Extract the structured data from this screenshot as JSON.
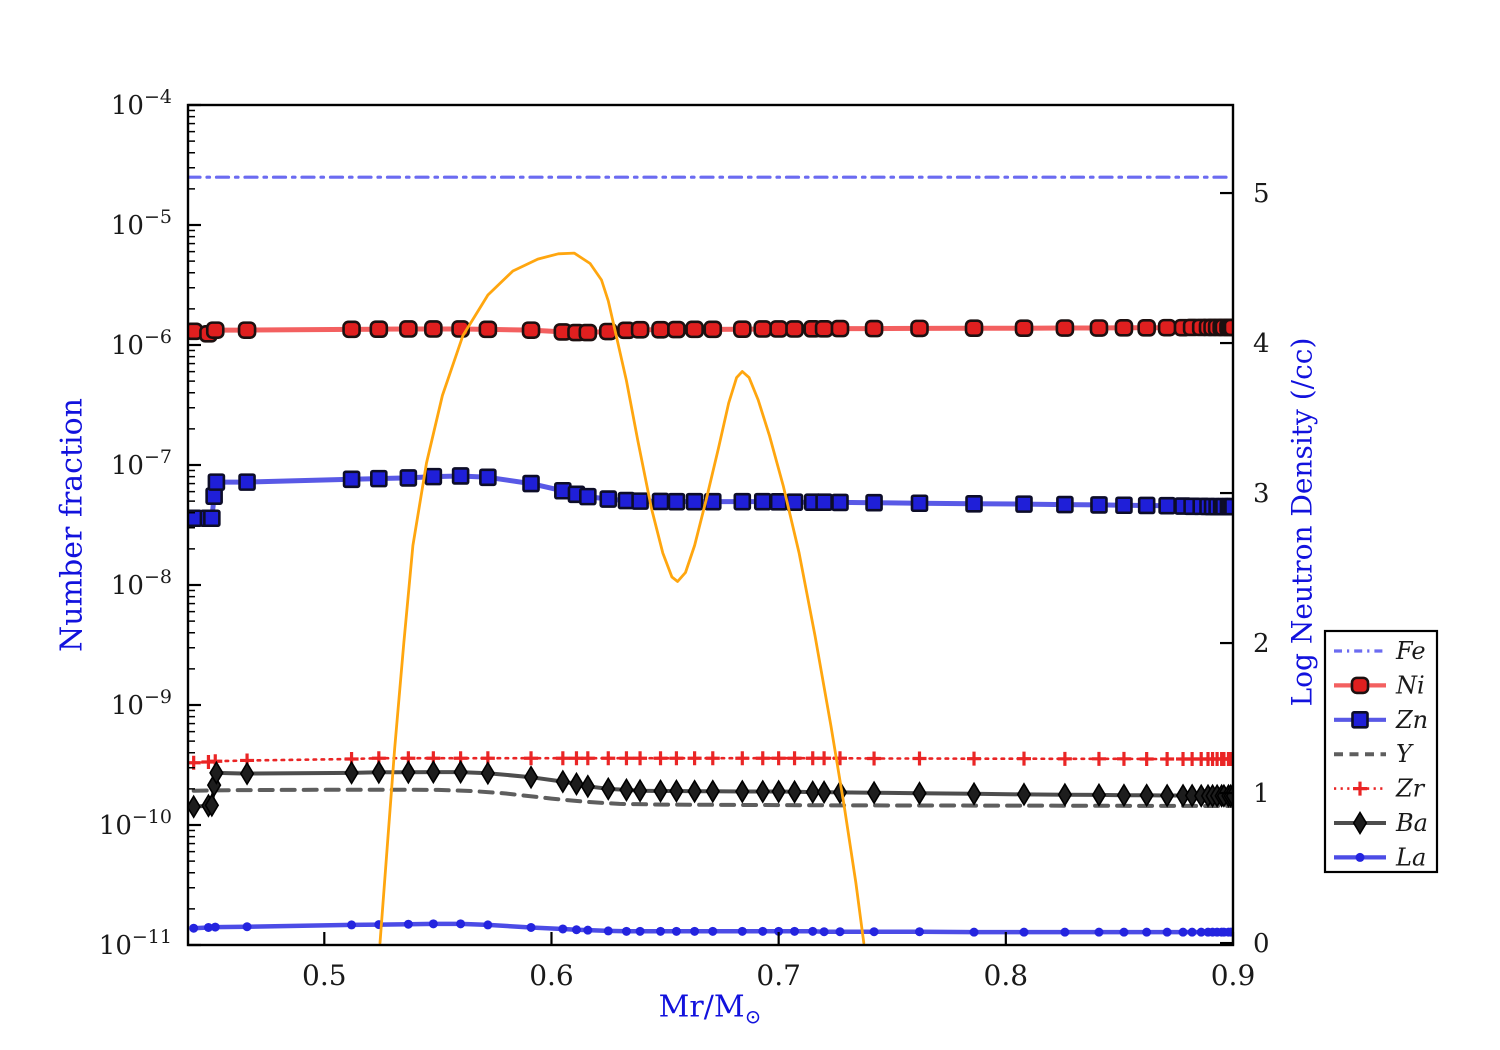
{
  "figure": {
    "background": "#ffffff"
  },
  "chart_data": {
    "type": "line",
    "title": "",
    "x_axis": {
      "label": "Mr/M⊙",
      "label_main": "Mr/M",
      "label_sub": "⊙",
      "min": 0.44,
      "max": 0.9,
      "ticks": [
        0.5,
        0.6,
        0.7,
        0.8,
        0.9
      ],
      "tick_labels": [
        "0.5",
        "0.6",
        "0.7",
        "0.8",
        "0.9"
      ]
    },
    "y_left_axis": {
      "label": "Number fraction",
      "scale": "log",
      "min": 1e-11,
      "max": 0.0001,
      "tick_exponents": [
        -4,
        -5,
        -6,
        -7,
        -8,
        -9,
        -10,
        -11
      ],
      "tick_base": "10"
    },
    "y_right_axis": {
      "label": "Log Neutron Density (/cc)",
      "scale": "linear",
      "min": -0.013,
      "max": 5.587,
      "ticks": [
        0,
        1,
        2,
        3,
        4,
        5
      ],
      "tick_labels": [
        "0",
        "1",
        "2",
        "3",
        "4",
        "5"
      ]
    },
    "legend": {
      "entries": [
        "Fe",
        "Ni",
        "Zn",
        "Y",
        "Zr",
        "Ba",
        "La"
      ],
      "position": "outside-right"
    },
    "series": [
      {
        "name": "Fe",
        "legend_label": "Fe",
        "axis": "left",
        "color": "#5b5bf0",
        "line_style": "dashdot",
        "line_width": 3.2,
        "opacity": 0.9,
        "marker": "none",
        "x": [
          0.44,
          0.9
        ],
        "y": [
          2.5e-05,
          2.5e-05
        ]
      },
      {
        "name": "Y",
        "legend_label": "Y",
        "axis": "left",
        "color": "#555555",
        "line_style": "dashed",
        "line_width": 4,
        "opacity": 0.95,
        "marker": "none",
        "x": [
          0.4425,
          0.46,
          0.5,
          0.53,
          0.55,
          0.565,
          0.58,
          0.6,
          0.615,
          0.63,
          0.65,
          0.68,
          0.72,
          0.76,
          0.8,
          0.85,
          0.9
        ],
        "y": [
          1.93e-10,
          1.95e-10,
          1.97e-10,
          1.97e-10,
          1.96e-10,
          1.92e-10,
          1.83e-10,
          1.66e-10,
          1.56e-10,
          1.5e-10,
          1.48e-10,
          1.47e-10,
          1.46e-10,
          1.455e-10,
          1.45e-10,
          1.445e-10,
          1.44e-10
        ]
      },
      {
        "name": "Zr",
        "legend_label": "Zr",
        "axis": "left",
        "color": "#ea2525",
        "line_style": "dotted",
        "line_width": 2.6,
        "opacity": 1,
        "marker": "plus",
        "marker_fill": "#ea2525",
        "marker_edge": "#ea2525",
        "marker_size": 14,
        "x": [
          0.4425,
          0.449,
          0.452,
          0.466,
          0.512,
          0.524,
          0.537,
          0.548,
          0.56,
          0.572,
          0.591,
          0.605,
          0.611,
          0.616,
          0.625,
          0.633,
          0.639,
          0.648,
          0.655,
          0.663,
          0.671,
          0.684,
          0.693,
          0.7,
          0.707,
          0.715,
          0.72,
          0.727,
          0.742,
          0.762,
          0.786,
          0.808,
          0.826,
          0.841,
          0.852,
          0.862,
          0.871,
          0.878,
          0.882,
          0.886,
          0.889,
          0.891,
          0.893,
          0.895,
          0.896,
          0.898,
          0.899,
          0.9
        ],
        "y": [
          3.3e-10,
          3.35e-10,
          3.4e-10,
          3.45e-10,
          3.55e-10,
          3.6e-10,
          3.6e-10,
          3.6e-10,
          3.6e-10,
          3.6e-10,
          3.6e-10,
          3.6e-10,
          3.6e-10,
          3.6e-10,
          3.6e-10,
          3.6e-10,
          3.6e-10,
          3.6e-10,
          3.6e-10,
          3.6e-10,
          3.6e-10,
          3.6e-10,
          3.6e-10,
          3.6e-10,
          3.6e-10,
          3.6e-10,
          3.6e-10,
          3.6e-10,
          3.58e-10,
          3.58e-10,
          3.57e-10,
          3.57e-10,
          3.56e-10,
          3.56e-10,
          3.56e-10,
          3.55e-10,
          3.55e-10,
          3.55e-10,
          3.55e-10,
          3.55e-10,
          3.55e-10,
          3.55e-10,
          3.55e-10,
          3.55e-10,
          3.55e-10,
          3.55e-10,
          3.55e-10,
          3.55e-10
        ]
      },
      {
        "name": "Ba",
        "legend_label": "Ba",
        "axis": "left",
        "color": "#3a3a3a",
        "line_style": "solid",
        "line_width": 4,
        "opacity": 0.9,
        "marker": "diamond",
        "marker_fill": "#1d1d1d",
        "marker_edge": "#000000",
        "marker_size": 21,
        "x": [
          0.4425,
          0.449,
          0.4505,
          0.4515,
          0.4525,
          0.466,
          0.512,
          0.524,
          0.537,
          0.548,
          0.56,
          0.572,
          0.591,
          0.605,
          0.611,
          0.616,
          0.625,
          0.633,
          0.639,
          0.648,
          0.655,
          0.663,
          0.671,
          0.684,
          0.693,
          0.7,
          0.707,
          0.715,
          0.72,
          0.727,
          0.742,
          0.762,
          0.786,
          0.808,
          0.826,
          0.841,
          0.852,
          0.862,
          0.871,
          0.878,
          0.882,
          0.886,
          0.889,
          0.891,
          0.893,
          0.895,
          0.896,
          0.898,
          0.899,
          0.9
        ],
        "y": [
          1.42e-10,
          1.45e-10,
          1.46e-10,
          2.15e-10,
          2.72e-10,
          2.68e-10,
          2.72e-10,
          2.75e-10,
          2.75e-10,
          2.76e-10,
          2.76e-10,
          2.7e-10,
          2.5e-10,
          2.3e-10,
          2.2e-10,
          2.1e-10,
          2e-10,
          1.96e-10,
          1.93e-10,
          1.92e-10,
          1.92e-10,
          1.91e-10,
          1.91e-10,
          1.9e-10,
          1.9e-10,
          1.9e-10,
          1.89e-10,
          1.88e-10,
          1.88e-10,
          1.87e-10,
          1.86e-10,
          1.84e-10,
          1.82e-10,
          1.8e-10,
          1.79e-10,
          1.78e-10,
          1.77e-10,
          1.77e-10,
          1.76e-10,
          1.76e-10,
          1.76e-10,
          1.75e-10,
          1.75e-10,
          1.75e-10,
          1.75e-10,
          1.75e-10,
          1.75e-10,
          1.75e-10,
          1.75e-10,
          1.75e-10
        ]
      },
      {
        "name": "La",
        "legend_label": "La",
        "axis": "left",
        "color": "#2d2de2",
        "line_style": "solid",
        "line_width": 4.5,
        "opacity": 0.85,
        "marker": "dot",
        "marker_fill": "#2424df",
        "marker_edge": "#2424df",
        "marker_size": 9,
        "x": [
          0.4425,
          0.449,
          0.452,
          0.466,
          0.512,
          0.524,
          0.537,
          0.548,
          0.56,
          0.572,
          0.591,
          0.605,
          0.611,
          0.616,
          0.625,
          0.633,
          0.639,
          0.648,
          0.655,
          0.663,
          0.671,
          0.684,
          0.693,
          0.7,
          0.707,
          0.715,
          0.72,
          0.727,
          0.742,
          0.762,
          0.786,
          0.808,
          0.826,
          0.841,
          0.852,
          0.862,
          0.871,
          0.878,
          0.882,
          0.886,
          0.889,
          0.891,
          0.893,
          0.895,
          0.896,
          0.898,
          0.899,
          0.9
        ],
        "y": [
          1.38e-11,
          1.4e-11,
          1.41e-11,
          1.42e-11,
          1.47e-11,
          1.48e-11,
          1.49e-11,
          1.5e-11,
          1.5e-11,
          1.47e-11,
          1.4e-11,
          1.36e-11,
          1.34e-11,
          1.33e-11,
          1.31e-11,
          1.3e-11,
          1.3e-11,
          1.3e-11,
          1.3e-11,
          1.3e-11,
          1.3e-11,
          1.3e-11,
          1.3e-11,
          1.3e-11,
          1.3e-11,
          1.3e-11,
          1.29e-11,
          1.29e-11,
          1.29e-11,
          1.29e-11,
          1.28e-11,
          1.28e-11,
          1.28e-11,
          1.28e-11,
          1.28e-11,
          1.28e-11,
          1.28e-11,
          1.28e-11,
          1.28e-11,
          1.28e-11,
          1.28e-11,
          1.28e-11,
          1.28e-11,
          1.28e-11,
          1.28e-11,
          1.28e-11,
          1.28e-11,
          1.28e-11
        ]
      },
      {
        "name": "Zn",
        "legend_label": "Zn",
        "axis": "left",
        "color": "#3030e0",
        "line_style": "solid",
        "line_width": 5,
        "opacity": 0.8,
        "marker": "square",
        "marker_fill": "#1f1fd8",
        "marker_edge": "#0d0d28",
        "marker_size": 15,
        "x": [
          0.4425,
          0.449,
          0.4505,
          0.4515,
          0.4525,
          0.466,
          0.512,
          0.524,
          0.537,
          0.548,
          0.56,
          0.572,
          0.591,
          0.605,
          0.611,
          0.616,
          0.625,
          0.633,
          0.639,
          0.648,
          0.655,
          0.663,
          0.671,
          0.684,
          0.693,
          0.7,
          0.707,
          0.715,
          0.72,
          0.727,
          0.742,
          0.762,
          0.786,
          0.808,
          0.826,
          0.841,
          0.852,
          0.862,
          0.871,
          0.878,
          0.882,
          0.886,
          0.889,
          0.891,
          0.893,
          0.895,
          0.896,
          0.898,
          0.899,
          0.9
        ],
        "y": [
          3.6e-08,
          3.6e-08,
          3.6e-08,
          5.5e-08,
          7.2e-08,
          7.2e-08,
          7.6e-08,
          7.7e-08,
          7.8e-08,
          8e-08,
          8.1e-08,
          7.9e-08,
          7e-08,
          6.1e-08,
          5.7e-08,
          5.45e-08,
          5.2e-08,
          5.05e-08,
          5e-08,
          4.97e-08,
          4.95e-08,
          4.95e-08,
          4.95e-08,
          4.95e-08,
          4.95e-08,
          4.93e-08,
          4.9e-08,
          4.9e-08,
          4.9e-08,
          4.88e-08,
          4.85e-08,
          4.8e-08,
          4.75e-08,
          4.72e-08,
          4.68e-08,
          4.65e-08,
          4.62e-08,
          4.6e-08,
          4.58e-08,
          4.55e-08,
          4.53e-08,
          4.52e-08,
          4.51e-08,
          4.5e-08,
          4.5e-08,
          4.5e-08,
          4.5e-08,
          4.5e-08,
          4.5e-08,
          4.5e-08
        ]
      },
      {
        "name": "Ni",
        "legend_label": "Ni",
        "axis": "left",
        "color": "#ee2222",
        "line_style": "solid",
        "line_width": 5,
        "opacity": 0.72,
        "marker": "roundsquare",
        "marker_fill": "#e01f1f",
        "marker_edge": "#1c1010",
        "marker_size": 16,
        "x": [
          0.4425,
          0.449,
          0.452,
          0.466,
          0.512,
          0.524,
          0.537,
          0.548,
          0.56,
          0.572,
          0.591,
          0.605,
          0.611,
          0.616,
          0.625,
          0.633,
          0.639,
          0.648,
          0.655,
          0.663,
          0.671,
          0.684,
          0.693,
          0.7,
          0.707,
          0.715,
          0.72,
          0.727,
          0.742,
          0.762,
          0.786,
          0.808,
          0.826,
          0.841,
          0.852,
          0.862,
          0.871,
          0.878,
          0.882,
          0.886,
          0.889,
          0.891,
          0.893,
          0.895,
          0.896,
          0.898,
          0.899,
          0.9
        ],
        "y": [
          1.3e-06,
          1.24e-06,
          1.33e-06,
          1.33e-06,
          1.35e-06,
          1.355e-06,
          1.36e-06,
          1.36e-06,
          1.36e-06,
          1.35e-06,
          1.33e-06,
          1.285e-06,
          1.27e-06,
          1.27e-06,
          1.295e-06,
          1.325e-06,
          1.34e-06,
          1.34e-06,
          1.345e-06,
          1.35e-06,
          1.35e-06,
          1.355e-06,
          1.36e-06,
          1.36e-06,
          1.36e-06,
          1.365e-06,
          1.365e-06,
          1.37e-06,
          1.37e-06,
          1.375e-06,
          1.38e-06,
          1.38e-06,
          1.385e-06,
          1.385e-06,
          1.39e-06,
          1.39e-06,
          1.395e-06,
          1.395e-06,
          1.4e-06,
          1.4e-06,
          1.4e-06,
          1.4e-06,
          1.4e-06,
          1.4e-06,
          1.4e-06,
          1.4e-06,
          1.4e-06,
          1.4e-06
        ]
      },
      {
        "name": "neutron_density",
        "legend_label": null,
        "axis": "right",
        "color": "#ffa60f",
        "line_style": "solid",
        "line_width": 2.8,
        "opacity": 1,
        "marker": "none",
        "x": [
          0.5245,
          0.528,
          0.531,
          0.535,
          0.539,
          0.545,
          0.552,
          0.561,
          0.572,
          0.583,
          0.594,
          0.603,
          0.61,
          0.617,
          0.622,
          0.625,
          0.6285,
          0.633,
          0.638,
          0.644,
          0.649,
          0.653,
          0.6555,
          0.659,
          0.663,
          0.668,
          0.6735,
          0.678,
          0.6815,
          0.684,
          0.687,
          0.691,
          0.696,
          0.702,
          0.709,
          0.716,
          0.723,
          0.729,
          0.734,
          0.7375
        ],
        "y": [
          0.0,
          0.7,
          1.3,
          2.0,
          2.65,
          3.2,
          3.65,
          4.05,
          4.32,
          4.48,
          4.56,
          4.595,
          4.6,
          4.53,
          4.42,
          4.28,
          4.05,
          3.75,
          3.35,
          2.9,
          2.6,
          2.44,
          2.41,
          2.47,
          2.65,
          2.95,
          3.3,
          3.6,
          3.77,
          3.81,
          3.77,
          3.62,
          3.38,
          3.05,
          2.6,
          2.05,
          1.45,
          0.9,
          0.4,
          0.0
        ]
      }
    ]
  }
}
